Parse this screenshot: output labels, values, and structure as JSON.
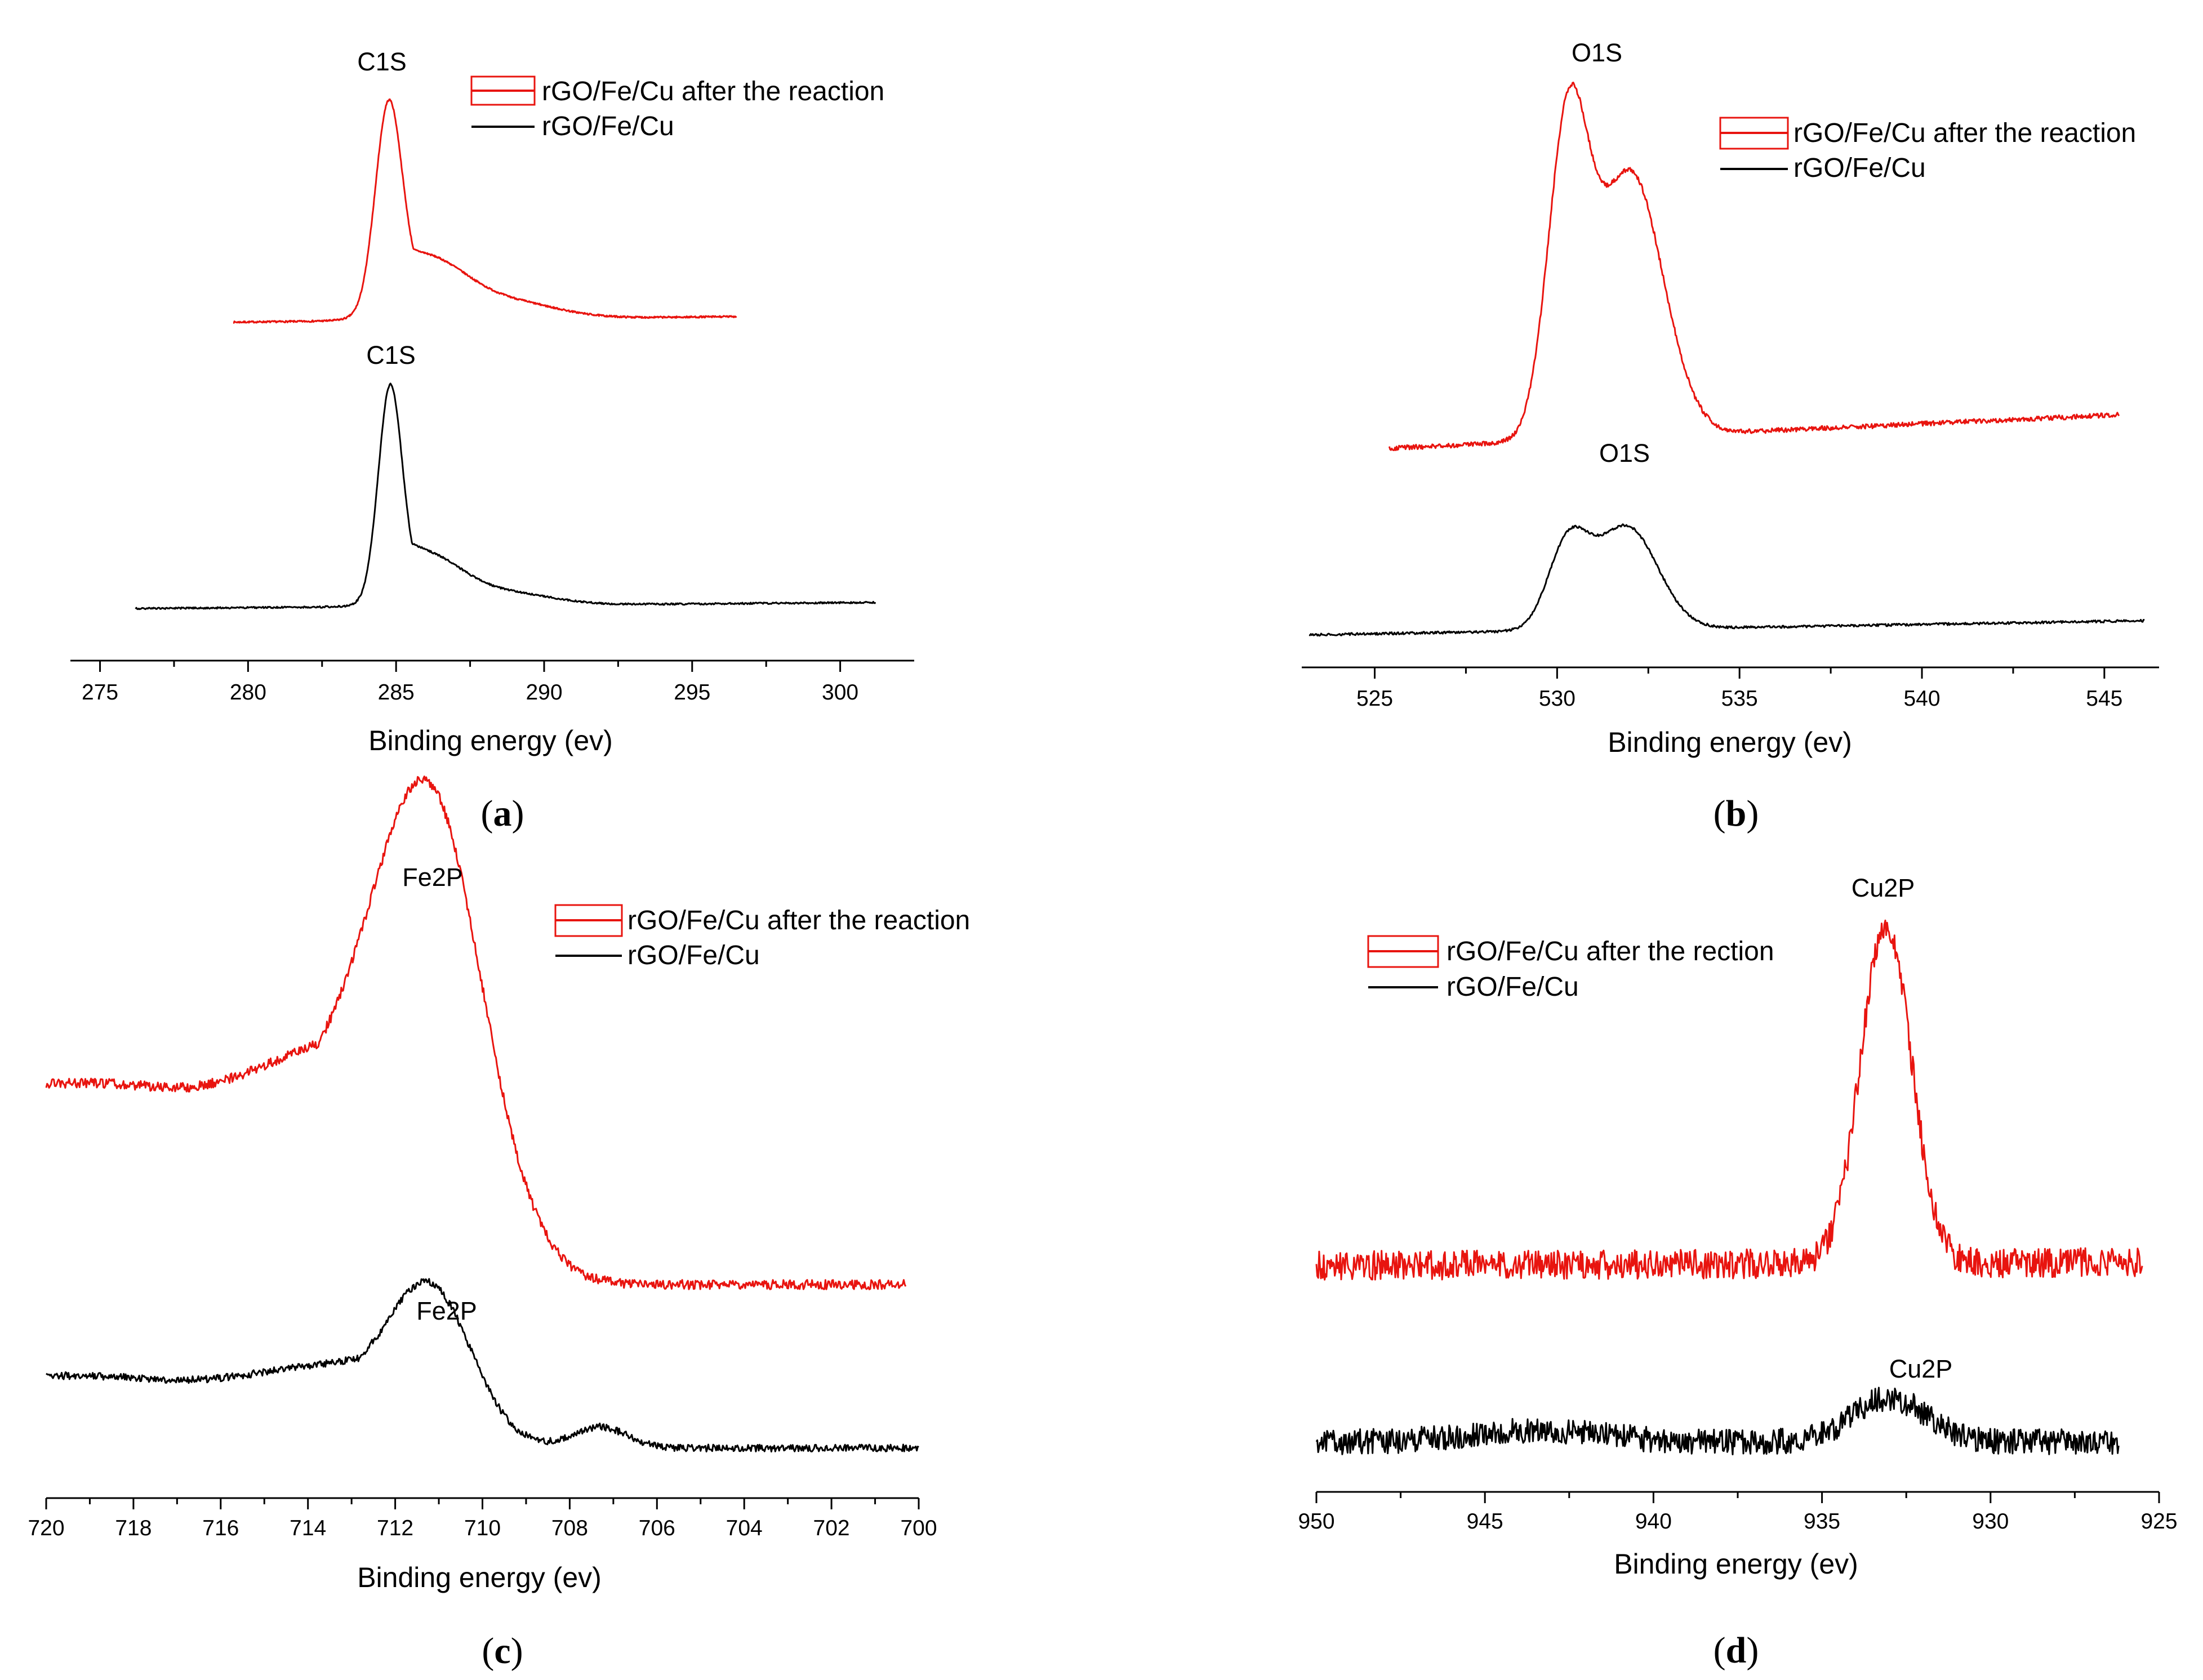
{
  "figure": {
    "series_colors": {
      "after": "#e8140f",
      "before": "#000000"
    }
  },
  "chart_data": [
    {
      "type": "line",
      "caption_letter": "a",
      "xlabel": "Binding energy (ev)",
      "xlim": [
        274,
        302.5
      ],
      "ylim": [
        0,
        1
      ],
      "x_reversed": false,
      "ticks": [
        275,
        280,
        285,
        290,
        295,
        300
      ],
      "legend_position": "top-right",
      "series": [
        {
          "name": "rGO/Fe/Cu after the reaction",
          "color": "#e8140f",
          "x_start": 279.5,
          "x_end": 296.5,
          "baseline": 0.585,
          "end_level": 0.595,
          "noise": 0.0015,
          "peaks": [
            [
              284.75,
              0.358,
              0.45,
              1.2
            ],
            [
              286.3,
              0.07,
              1.2,
              0
            ],
            [
              288.8,
              0.028,
              1.6,
              0
            ]
          ],
          "peak_label": "C1S"
        },
        {
          "name": "rGO/Fe/Cu",
          "color": "#000000",
          "x_start": 276.2,
          "x_end": 301.2,
          "baseline": 0.079,
          "end_level": 0.09,
          "noise": 0.0015,
          "peaks": [
            [
              284.8,
              0.37,
              0.4,
              1.1
            ],
            [
              286.3,
              0.055,
              1.1,
              0
            ],
            [
              288.8,
              0.02,
              1.5,
              0
            ]
          ],
          "peak_label": "C1S"
        }
      ]
    },
    {
      "type": "line",
      "caption_letter": "b",
      "xlabel": "Binding energy (ev)",
      "xlim": [
        523,
        546.5
      ],
      "ylim": [
        0,
        1
      ],
      "x_reversed": false,
      "ticks": [
        525,
        530,
        535,
        540,
        545
      ],
      "legend_position": "top-right",
      "series": [
        {
          "name": "rGO/Fe/Cu after the reaction",
          "color": "#e8140f",
          "x_start": 525.4,
          "x_end": 545.4,
          "baseline": 0.358,
          "end_level": 0.415,
          "noise": 0.004,
          "peaks": [
            [
              530.3,
              0.52,
              0.55,
              0.4
            ],
            [
              532.0,
              0.45,
              0.9,
              0.6
            ]
          ],
          "peak_label": "O1S"
        },
        {
          "name": "rGO/Fe/Cu",
          "color": "#000000",
          "x_start": 523.2,
          "x_end": 546.1,
          "baseline": 0.041,
          "end_level": 0.065,
          "noise": 0.002,
          "peaks": [
            [
              530.3,
              0.14,
              0.55,
              0.3
            ],
            [
              531.9,
              0.175,
              0.85,
              0.5
            ]
          ],
          "peak_label": "O1S"
        }
      ]
    },
    {
      "type": "line",
      "caption_letter": "c",
      "xlabel": "Binding energy (ev)",
      "xlim": [
        720,
        700
      ],
      "ylim": [
        0,
        1
      ],
      "x_reversed": true,
      "ticks": [
        720,
        718,
        716,
        714,
        712,
        710,
        708,
        706,
        704,
        702,
        700
      ],
      "legend_position": "top-right",
      "series": [
        {
          "name": "rGO/Fe/Cu after the reaction",
          "color": "#e8140f",
          "x_start": 720,
          "x_end": 700.3,
          "baseline": 0.345,
          "end_level": 0.345,
          "noise": 0.008,
          "left_level": 0.675,
          "peaks": [
            [
              711.2,
              0.56,
              1.3,
              2.8
            ],
            [
              716.5,
              -0.025,
              1.2,
              0
            ]
          ],
          "peak_label": "Fe2P"
        },
        {
          "name": "rGO/Fe/Cu",
          "color": "#000000",
          "x_start": 720,
          "x_end": 700,
          "baseline": 0.07,
          "end_level": 0.07,
          "noise": 0.006,
          "left_level": 0.19,
          "peaks": [
            [
              711.2,
              0.175,
              0.9,
              2.5
            ],
            [
              707.3,
              0.035,
              0.6,
              0.3
            ],
            [
              716.5,
              -0.012,
              1.2,
              0
            ]
          ],
          "peak_label": "Fe2P"
        }
      ]
    },
    {
      "type": "line",
      "caption_letter": "d",
      "xlabel": "Binding energy (ev)",
      "xlim": [
        950,
        925
      ],
      "ylim": [
        0,
        1
      ],
      "x_reversed": true,
      "ticks": [
        950,
        945,
        940,
        935,
        930,
        925
      ],
      "legend_position": "top-left",
      "series": [
        {
          "name": "rGO/Fe/Cu after the rection",
          "color": "#e8140f",
          "x_start": 950,
          "x_end": 925.5,
          "baseline": 0.38,
          "end_level": 0.375,
          "noise": 0.025,
          "peaks": [
            [
              933.1,
              0.58,
              0.75,
              0.45
            ]
          ],
          "peak_label": "Cu2P"
        },
        {
          "name": "rGO/Fe/Cu",
          "color": "#000000",
          "x_start": 950,
          "x_end": 926.2,
          "baseline": 0.072,
          "end_level": 0.072,
          "noise": 0.022,
          "peaks": [
            [
              943.5,
              0.02,
              2,
              0
            ],
            [
              933.0,
              0.075,
              1.1,
              0.3
            ]
          ],
          "peak_label": "Cu2P"
        }
      ]
    }
  ]
}
